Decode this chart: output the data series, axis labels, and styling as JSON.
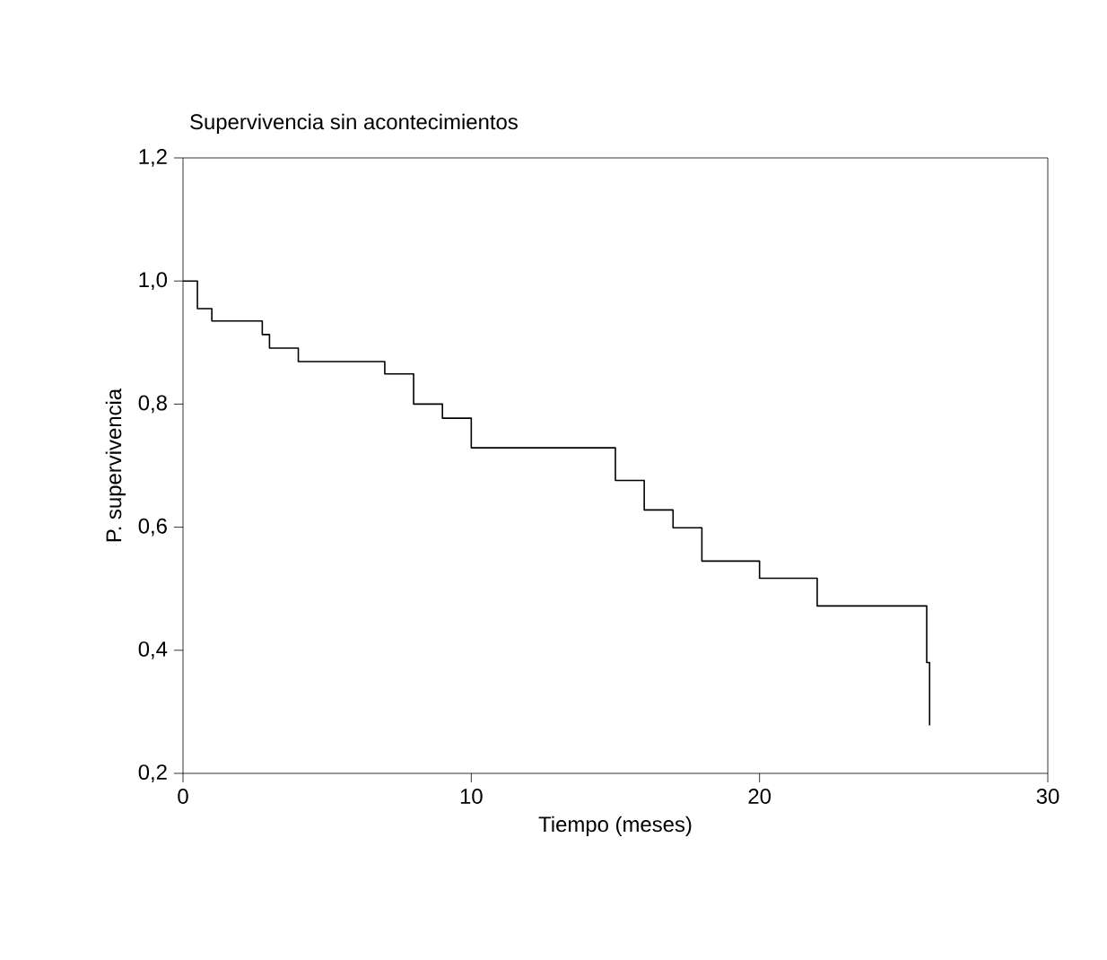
{
  "chart_data": {
    "type": "step",
    "title": "Supervivencia sin acontecimientos",
    "xlabel": "Tiempo (meses)",
    "ylabel": "P. supervivencia",
    "x": [
      0,
      0.5,
      1,
      2.75,
      3,
      4,
      7,
      8,
      9,
      10,
      15,
      16,
      17,
      18,
      20,
      22,
      25.8,
      25.9
    ],
    "series": [
      {
        "color": "#000000",
        "values": [
          1.0,
          0.955,
          0.935,
          0.913,
          0.891,
          0.869,
          0.849,
          0.8,
          0.777,
          0.729,
          0.676,
          0.628,
          0.599,
          0.545,
          0.517,
          0.472,
          0.38,
          0.278
        ]
      }
    ],
    "xlim": [
      0,
      30
    ],
    "ylim": [
      0.2,
      1.2
    ],
    "xticks": [
      0,
      10,
      20,
      30
    ],
    "yticks": [
      {
        "value": 0.2,
        "label": "0,2"
      },
      {
        "value": 0.4,
        "label": "0,4"
      },
      {
        "value": 0.6,
        "label": "0,6"
      },
      {
        "value": 0.8,
        "label": "0,8"
      },
      {
        "value": 1.0,
        "label": "1,0"
      },
      {
        "value": 1.2,
        "label": "1,2"
      }
    ],
    "marker": "none",
    "line_style": "solid"
  }
}
